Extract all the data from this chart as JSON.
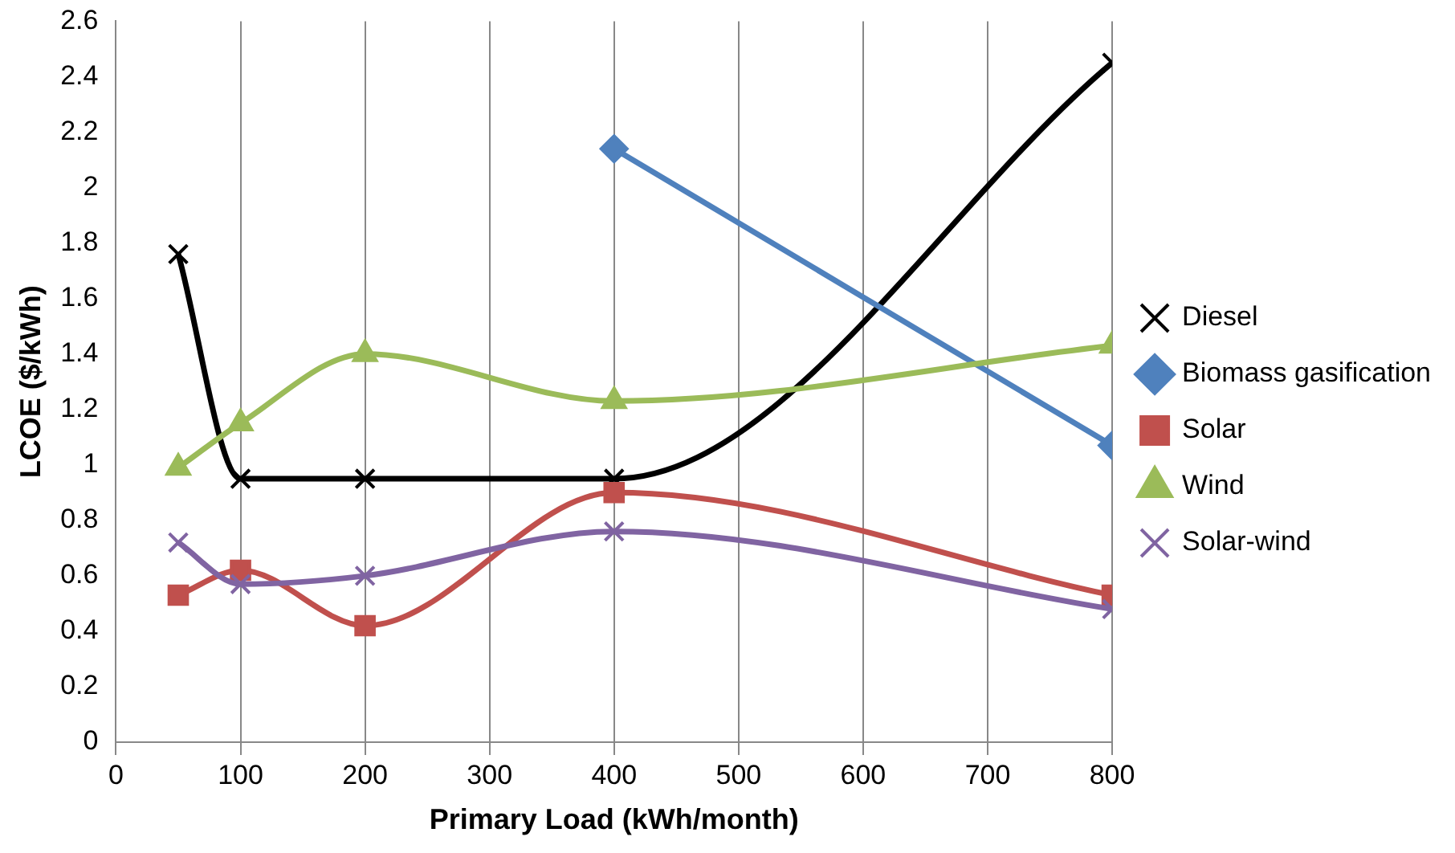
{
  "chart_data": {
    "type": "line",
    "xlabel": "Primary Load (kWh/month)",
    "ylabel": "LCOE ($/kWh)",
    "xlim": [
      0,
      800
    ],
    "xticks": [
      0,
      100,
      200,
      300,
      400,
      500,
      600,
      700,
      800
    ],
    "ylim": [
      0,
      2.6
    ],
    "yticks": [
      0,
      0.2,
      0.4,
      0.6,
      0.8,
      1,
      1.2,
      1.4,
      1.6,
      1.8,
      2,
      2.2,
      2.4,
      2.6
    ],
    "grid": "x",
    "legend": "right",
    "series": [
      {
        "name": "Diesel",
        "color": "#000000",
        "marker": "cross",
        "x": [
          50,
          100,
          200,
          400,
          800
        ],
        "values": [
          1.76,
          0.95,
          0.95,
          0.95,
          2.45
        ]
      },
      {
        "name": "Biomass gasification",
        "color": "#4f81bd",
        "marker": "diamond",
        "x": [
          400,
          800
        ],
        "values": [
          2.14,
          1.07
        ]
      },
      {
        "name": "Solar",
        "color": "#c0504d",
        "marker": "square",
        "x": [
          50,
          100,
          200,
          400,
          800
        ],
        "values": [
          0.53,
          0.62,
          0.42,
          0.9,
          0.53
        ]
      },
      {
        "name": "Wind",
        "color": "#9bbb59",
        "marker": "triangle",
        "x": [
          50,
          100,
          200,
          400,
          800
        ],
        "values": [
          0.99,
          1.15,
          1.4,
          1.23,
          1.43
        ]
      },
      {
        "name": "Solar-wind",
        "color": "#8064a2",
        "marker": "cross",
        "x": [
          50,
          100,
          200,
          400,
          800
        ],
        "values": [
          0.72,
          0.57,
          0.6,
          0.76,
          0.48
        ]
      }
    ]
  }
}
